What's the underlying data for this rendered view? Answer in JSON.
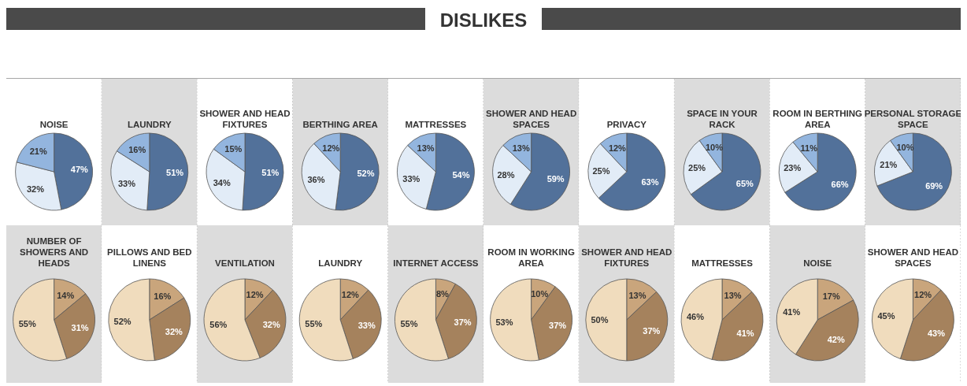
{
  "chart_data": [
    {
      "type": "other",
      "title": "DISLIKES"
    },
    {
      "type": "pie",
      "title": "NOISE",
      "categories": [
        null,
        null,
        null
      ],
      "values": [
        47,
        32,
        21
      ],
      "value_labels": [
        "47%",
        "32%",
        "21%"
      ],
      "colors": [
        "#52719a",
        "#e2ecf7",
        "#93b5de"
      ]
    },
    {
      "type": "pie",
      "title": "LAUNDRY",
      "categories": [
        null,
        null,
        null
      ],
      "values": [
        51,
        33,
        16
      ],
      "value_labels": [
        "51%",
        "33%",
        "16%"
      ],
      "colors": [
        "#52719a",
        "#e2ecf7",
        "#93b5de"
      ]
    },
    {
      "type": "pie",
      "title": "SHOWER AND HEAD FIXTURES",
      "categories": [
        null,
        null,
        null
      ],
      "values": [
        51,
        34,
        15
      ],
      "value_labels": [
        "51%",
        "34%",
        "15%"
      ],
      "colors": [
        "#52719a",
        "#e2ecf7",
        "#93b5de"
      ]
    },
    {
      "type": "pie",
      "title": "BERTHING AREA",
      "categories": [
        null,
        null,
        null
      ],
      "values": [
        52,
        36,
        12
      ],
      "value_labels": [
        "52%",
        "36%",
        "12%"
      ],
      "colors": [
        "#52719a",
        "#e2ecf7",
        "#93b5de"
      ]
    },
    {
      "type": "pie",
      "title": "MATTRESSES",
      "categories": [
        null,
        null,
        null
      ],
      "values": [
        54,
        33,
        13
      ],
      "value_labels": [
        "54%",
        "33%",
        "13%"
      ],
      "colors": [
        "#52719a",
        "#e2ecf7",
        "#93b5de"
      ]
    },
    {
      "type": "pie",
      "title": "SHOWER AND HEAD SPACES",
      "categories": [
        null,
        null,
        null
      ],
      "values": [
        59,
        28,
        13
      ],
      "value_labels": [
        "59%",
        "28%",
        "13%"
      ],
      "colors": [
        "#52719a",
        "#e2ecf7",
        "#93b5de"
      ]
    },
    {
      "type": "pie",
      "title": "PRIVACY",
      "categories": [
        null,
        null,
        null
      ],
      "values": [
        63,
        25,
        12
      ],
      "value_labels": [
        "63%",
        "25%",
        "12%"
      ],
      "colors": [
        "#52719a",
        "#e2ecf7",
        "#93b5de"
      ]
    },
    {
      "type": "pie",
      "title": "SPACE IN YOUR RACK",
      "categories": [
        null,
        null,
        null
      ],
      "values": [
        65,
        25,
        10
      ],
      "value_labels": [
        "65%",
        "25%",
        "10%"
      ],
      "colors": [
        "#52719a",
        "#e2ecf7",
        "#93b5de"
      ]
    },
    {
      "type": "pie",
      "title": "ROOM IN BERTHING AREA",
      "categories": [
        null,
        null,
        null
      ],
      "values": [
        66,
        23,
        11
      ],
      "value_labels": [
        "66%",
        "23%",
        "11%"
      ],
      "colors": [
        "#52719a",
        "#e2ecf7",
        "#93b5de"
      ]
    },
    {
      "type": "pie",
      "title": "PERSONAL STORAGE SPACE",
      "categories": [
        null,
        null,
        null
      ],
      "values": [
        69,
        21,
        10
      ],
      "value_labels": [
        "69%",
        "21%",
        "10%"
      ],
      "colors": [
        "#52719a",
        "#e2ecf7",
        "#93b5de"
      ]
    },
    {
      "type": "pie",
      "title": "NUMBER OF SHOWERS AND HEADS",
      "categories": [
        null,
        null,
        null
      ],
      "values": [
        14,
        31,
        55
      ],
      "value_labels": [
        "14%",
        "31%",
        "55%"
      ],
      "colors": [
        "#c9a57c",
        "#a5825d",
        "#f0dcbd"
      ]
    },
    {
      "type": "pie",
      "title": "PILLOWS AND BED LINENS",
      "categories": [
        null,
        null,
        null
      ],
      "values": [
        16,
        32,
        52
      ],
      "value_labels": [
        "16%",
        "32%",
        "52%"
      ],
      "colors": [
        "#c9a57c",
        "#a5825d",
        "#f0dcbd"
      ]
    },
    {
      "type": "pie",
      "title": "VENTILATION",
      "categories": [
        null,
        null,
        null
      ],
      "values": [
        12,
        32,
        56
      ],
      "value_labels": [
        "12%",
        "32%",
        "56%"
      ],
      "colors": [
        "#c9a57c",
        "#a5825d",
        "#f0dcbd"
      ]
    },
    {
      "type": "pie",
      "title": "LAUNDRY",
      "categories": [
        null,
        null,
        null
      ],
      "values": [
        12,
        33,
        55
      ],
      "value_labels": [
        "12%",
        "33%",
        "55%"
      ],
      "colors": [
        "#c9a57c",
        "#a5825d",
        "#f0dcbd"
      ]
    },
    {
      "type": "pie",
      "title": "INTERNET ACCESS",
      "categories": [
        null,
        null,
        null
      ],
      "values": [
        8,
        37,
        55
      ],
      "value_labels": [
        "8%",
        "37%",
        "55%"
      ],
      "colors": [
        "#c9a57c",
        "#a5825d",
        "#f0dcbd"
      ]
    },
    {
      "type": "pie",
      "title": "ROOM IN WORKING AREA",
      "categories": [
        null,
        null,
        null
      ],
      "values": [
        10,
        37,
        53
      ],
      "value_labels": [
        "10%",
        "37%",
        "53%"
      ],
      "colors": [
        "#c9a57c",
        "#a5825d",
        "#f0dcbd"
      ]
    },
    {
      "type": "pie",
      "title": "SHOWER AND HEAD FIXTURES",
      "categories": [
        null,
        null,
        null
      ],
      "values": [
        13,
        37,
        50
      ],
      "value_labels": [
        "13%",
        "37%",
        "50%"
      ],
      "colors": [
        "#c9a57c",
        "#a5825d",
        "#f0dcbd"
      ]
    },
    {
      "type": "pie",
      "title": "MATTRESSES",
      "categories": [
        null,
        null,
        null
      ],
      "values": [
        13,
        41,
        46
      ],
      "value_labels": [
        "13%",
        "41%",
        "46%"
      ],
      "colors": [
        "#c9a57c",
        "#a5825d",
        "#f0dcbd"
      ]
    },
    {
      "type": "pie",
      "title": "NOISE",
      "categories": [
        null,
        null,
        null
      ],
      "values": [
        17,
        42,
        41
      ],
      "value_labels": [
        "17%",
        "42%",
        "41%"
      ],
      "colors": [
        "#c9a57c",
        "#a5825d",
        "#f0dcbd"
      ]
    },
    {
      "type": "pie",
      "title": "SHOWER AND HEAD SPACES",
      "categories": [
        null,
        null,
        null
      ],
      "values": [
        12,
        43,
        45
      ],
      "value_labels": [
        "12%",
        "43%",
        "45%"
      ],
      "colors": [
        "#c9a57c",
        "#a5825d",
        "#f0dcbd"
      ]
    }
  ]
}
